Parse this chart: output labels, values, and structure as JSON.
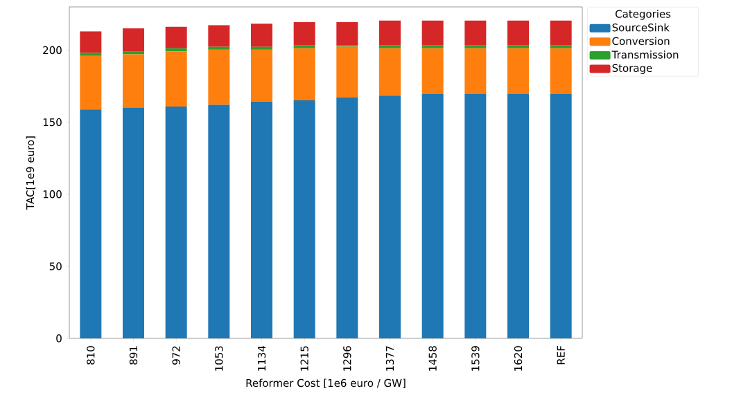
{
  "chart_data": {
    "type": "bar",
    "stacked": true,
    "xlabel": "Reformer Cost [1e6 euro / GW]",
    "ylabel": "TAC[1e9 euro]",
    "legend_title": "Categories",
    "legend": "right",
    "categories": [
      "810",
      "891",
      "972",
      "1053",
      "1134",
      "1215",
      "1296",
      "1377",
      "1458",
      "1539",
      "1620",
      "REF"
    ],
    "series": [
      {
        "name": "SourceSink",
        "color": "#1f77b4",
        "values": [
          158.8,
          159.9,
          160.9,
          162.0,
          164.3,
          165.2,
          167.3,
          168.4,
          169.5,
          169.5,
          169.5,
          169.5
        ]
      },
      {
        "name": "Conversion",
        "color": "#ff7f0e",
        "values": [
          37.2,
          37.2,
          38.3,
          38.3,
          36.0,
          36.1,
          35.1,
          32.9,
          31.8,
          31.8,
          31.8,
          31.8
        ]
      },
      {
        "name": "Transmission",
        "color": "#2ca02c",
        "values": [
          2.1,
          2.1,
          2.1,
          2.0,
          2.0,
          2.2,
          1.1,
          2.2,
          2.2,
          2.2,
          2.2,
          2.2
        ]
      },
      {
        "name": "Storage",
        "color": "#d62728",
        "values": [
          14.9,
          15.9,
          14.9,
          15.0,
          16.1,
          15.9,
          15.9,
          17.0,
          17.0,
          17.0,
          17.0,
          17.0
        ]
      }
    ],
    "ylim": [
      0,
      230
    ],
    "yticks": [
      0,
      50,
      100,
      150,
      200
    ]
  }
}
